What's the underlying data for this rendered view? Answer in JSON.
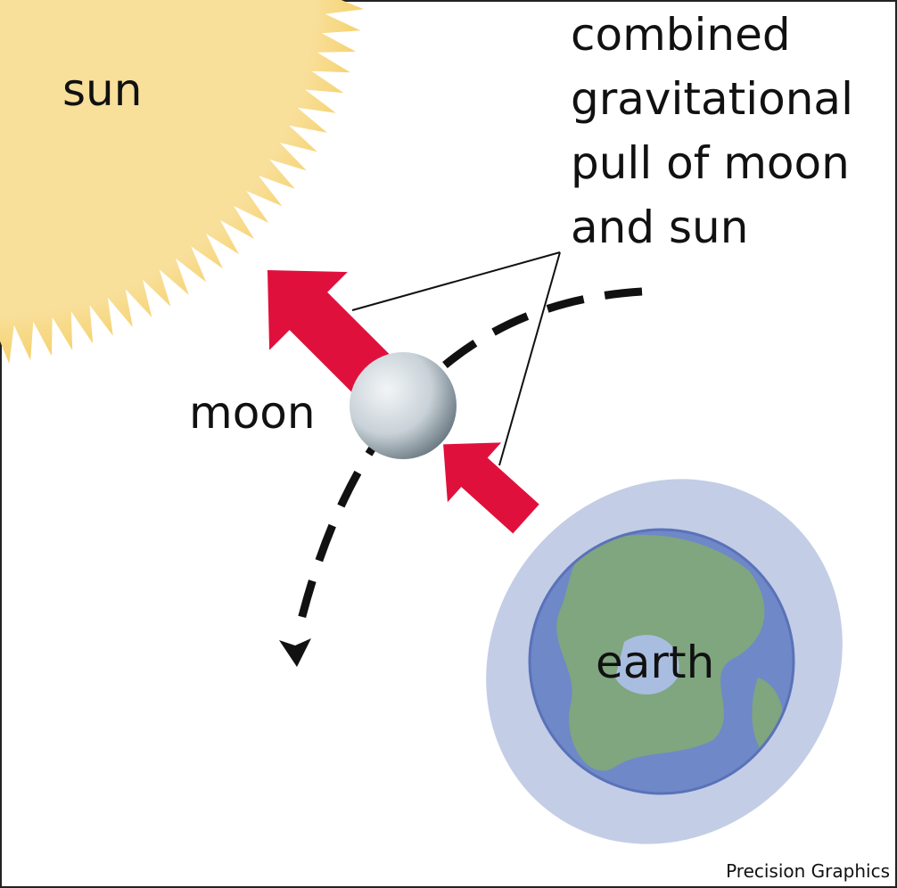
{
  "labels": {
    "sun": "sun",
    "moon": "moon",
    "earth": "earth",
    "pull": [
      "combined",
      "gravitational",
      "pull of moon",
      "and sun"
    ]
  },
  "credit": "Precision Graphics"
}
